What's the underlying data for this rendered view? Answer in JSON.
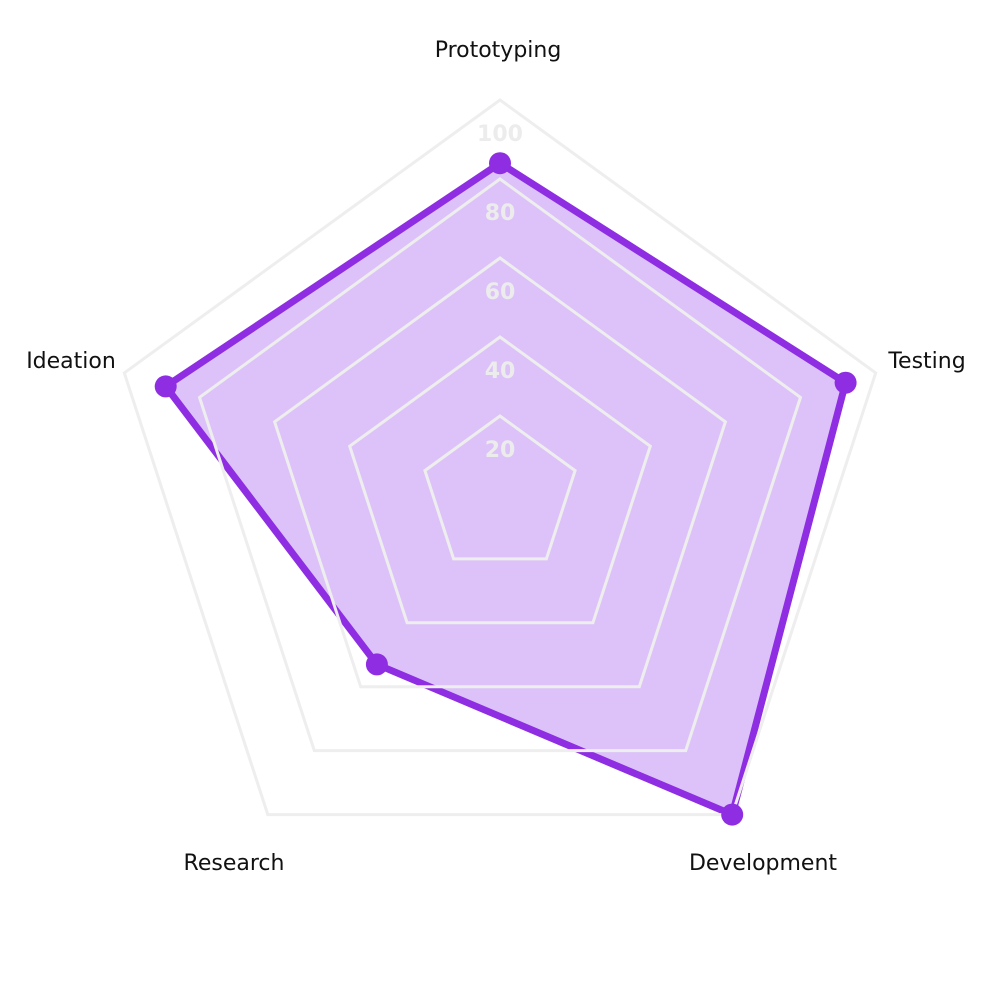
{
  "chart_data": {
    "type": "radar",
    "title": "",
    "axes": [
      "Prototyping",
      "Testing",
      "Development",
      "Research",
      "Ideation"
    ],
    "series": [
      {
        "values": [
          84,
          92,
          100,
          53,
          89
        ]
      }
    ],
    "rlim": [
      0,
      100
    ],
    "ticks": [
      20,
      40,
      60,
      80,
      100
    ],
    "grid": true,
    "legend": "none",
    "colors": {
      "line": "#8e2de2",
      "fill": "#dcc2f9",
      "grid": "#eeeeee",
      "tick": "#ececec"
    }
  }
}
